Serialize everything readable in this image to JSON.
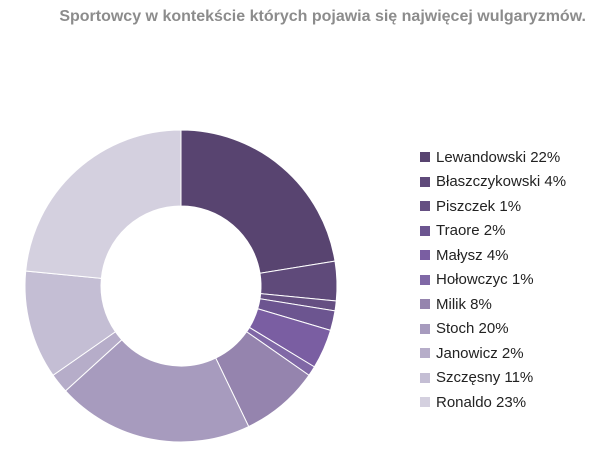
{
  "chart_data": {
    "type": "pie",
    "title": "Sportowcy w kontekście których pojawia się najwięcej wulgaryzmów.",
    "donut": true,
    "legend_position": "right",
    "slices": [
      {
        "label": "Lewandowski 22%",
        "name": "Lewandowski",
        "value": 22,
        "color": "#584470"
      },
      {
        "label": "Błaszczykowski 4%",
        "name": "Błaszczykowski",
        "value": 4,
        "color": "#5f4a7a"
      },
      {
        "label": "Piszczek 1%",
        "name": "Piszczek",
        "value": 1,
        "color": "#654f82"
      },
      {
        "label": "Traore 2%",
        "name": "Traore",
        "value": 2,
        "color": "#6c5590"
      },
      {
        "label": "Małysz 4%",
        "name": "Małysz",
        "value": 4,
        "color": "#7a5ea2"
      },
      {
        "label": "Hołowczyc 1%",
        "name": "Hołowczyc",
        "value": 1,
        "color": "#8068a6"
      },
      {
        "label": "Milik 8%",
        "name": "Milik",
        "value": 8,
        "color": "#9584ae"
      },
      {
        "label": "Stoch 20%",
        "name": "Stoch",
        "value": 20,
        "color": "#a79bbe"
      },
      {
        "label": "Janowicz 2%",
        "name": "Janowicz",
        "value": 2,
        "color": "#b6adc9"
      },
      {
        "label": "Szczęsny 11%",
        "name": "Szczęsny",
        "value": 11,
        "color": "#c4bed4"
      },
      {
        "label": "Ronaldo 23%",
        "name": "Ronaldo",
        "value": 23,
        "color": "#d4d0df"
      }
    ]
  }
}
